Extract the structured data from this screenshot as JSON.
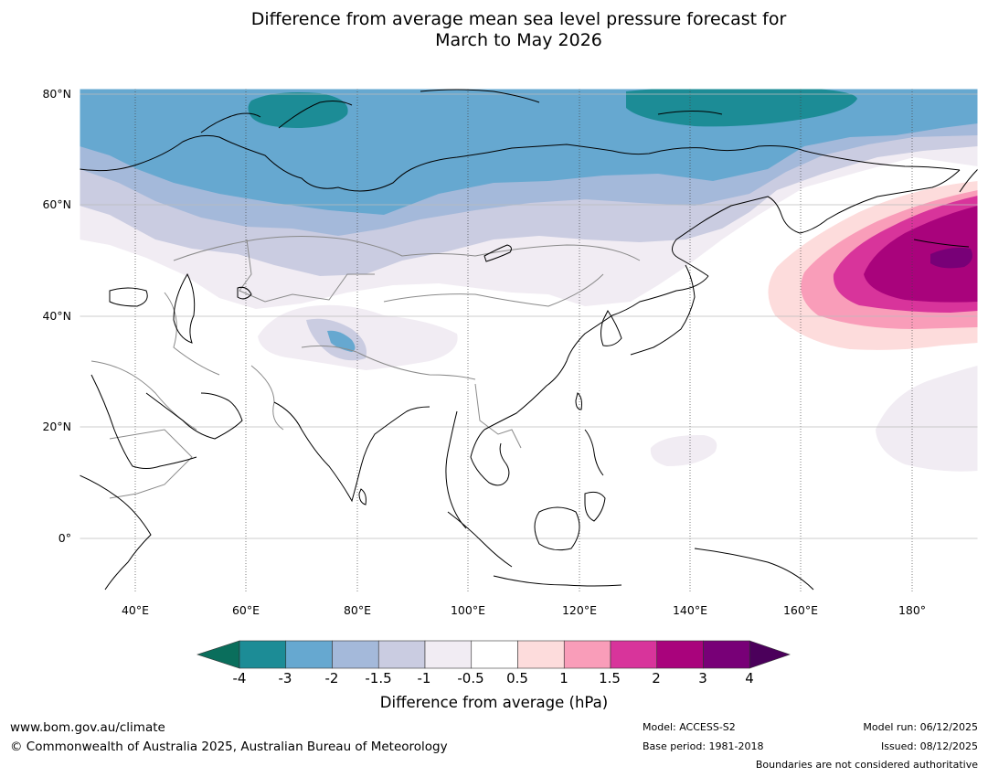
{
  "title": {
    "line1": "Difference from average mean sea level pressure forecast for",
    "line2": "March to May 2026"
  },
  "map": {
    "lat_labels": [
      "80°N",
      "60°N",
      "40°N",
      "20°N",
      "0°"
    ],
    "lon_labels": [
      "40°E",
      "60°E",
      "80°E",
      "100°E",
      "120°E",
      "140°E",
      "160°E",
      "180°"
    ],
    "contour_levels_hpa": [
      -4,
      -3,
      -2,
      -1.5,
      -1,
      -0.5,
      0.5,
      1,
      1.5,
      2,
      3,
      4
    ],
    "features": {
      "negative_anomaly_region": "northern Eurasia / Arctic",
      "positive_anomaly_region": "North Pacific east of Japan",
      "minor_negative_region": "Tibetan Plateau"
    }
  },
  "colorbar": {
    "title": "Difference from average (hPa)",
    "tick_labels": [
      "-4",
      "-3",
      "-2",
      "-1.5",
      "-1",
      "-0.5",
      "0.5",
      "1",
      "1.5",
      "2",
      "3",
      "4"
    ],
    "colors": {
      "lt_-4": "#0a6e5c",
      "-4_-3": "#1c8c96",
      "-3_-2": "#66a8d0",
      "-2_-1.5": "#a4b9da",
      "-1.5_-1": "#cacce1",
      "-1_-0.5": "#f1ecf3",
      "-0.5_0.5": "#ffffff",
      "0.5_1": "#fddcdc",
      "1_1.5": "#f99db9",
      "1.5_2": "#d8349b",
      "2_3": "#a9037c",
      "3_4": "#780077",
      "gt_4": "#4b005b"
    }
  },
  "footer": {
    "website": "www.bom.gov.au/climate",
    "copyright": "© Commonwealth of Australia 2025, Australian Bureau of Meteorology",
    "model": "Model: ACCESS-S2",
    "base_period": "Base period: 1981-2018",
    "model_run": "Model run: 06/12/2025",
    "issued": "Issued: 08/12/2025",
    "disclaimer": "Boundaries are not considered authoritative"
  }
}
